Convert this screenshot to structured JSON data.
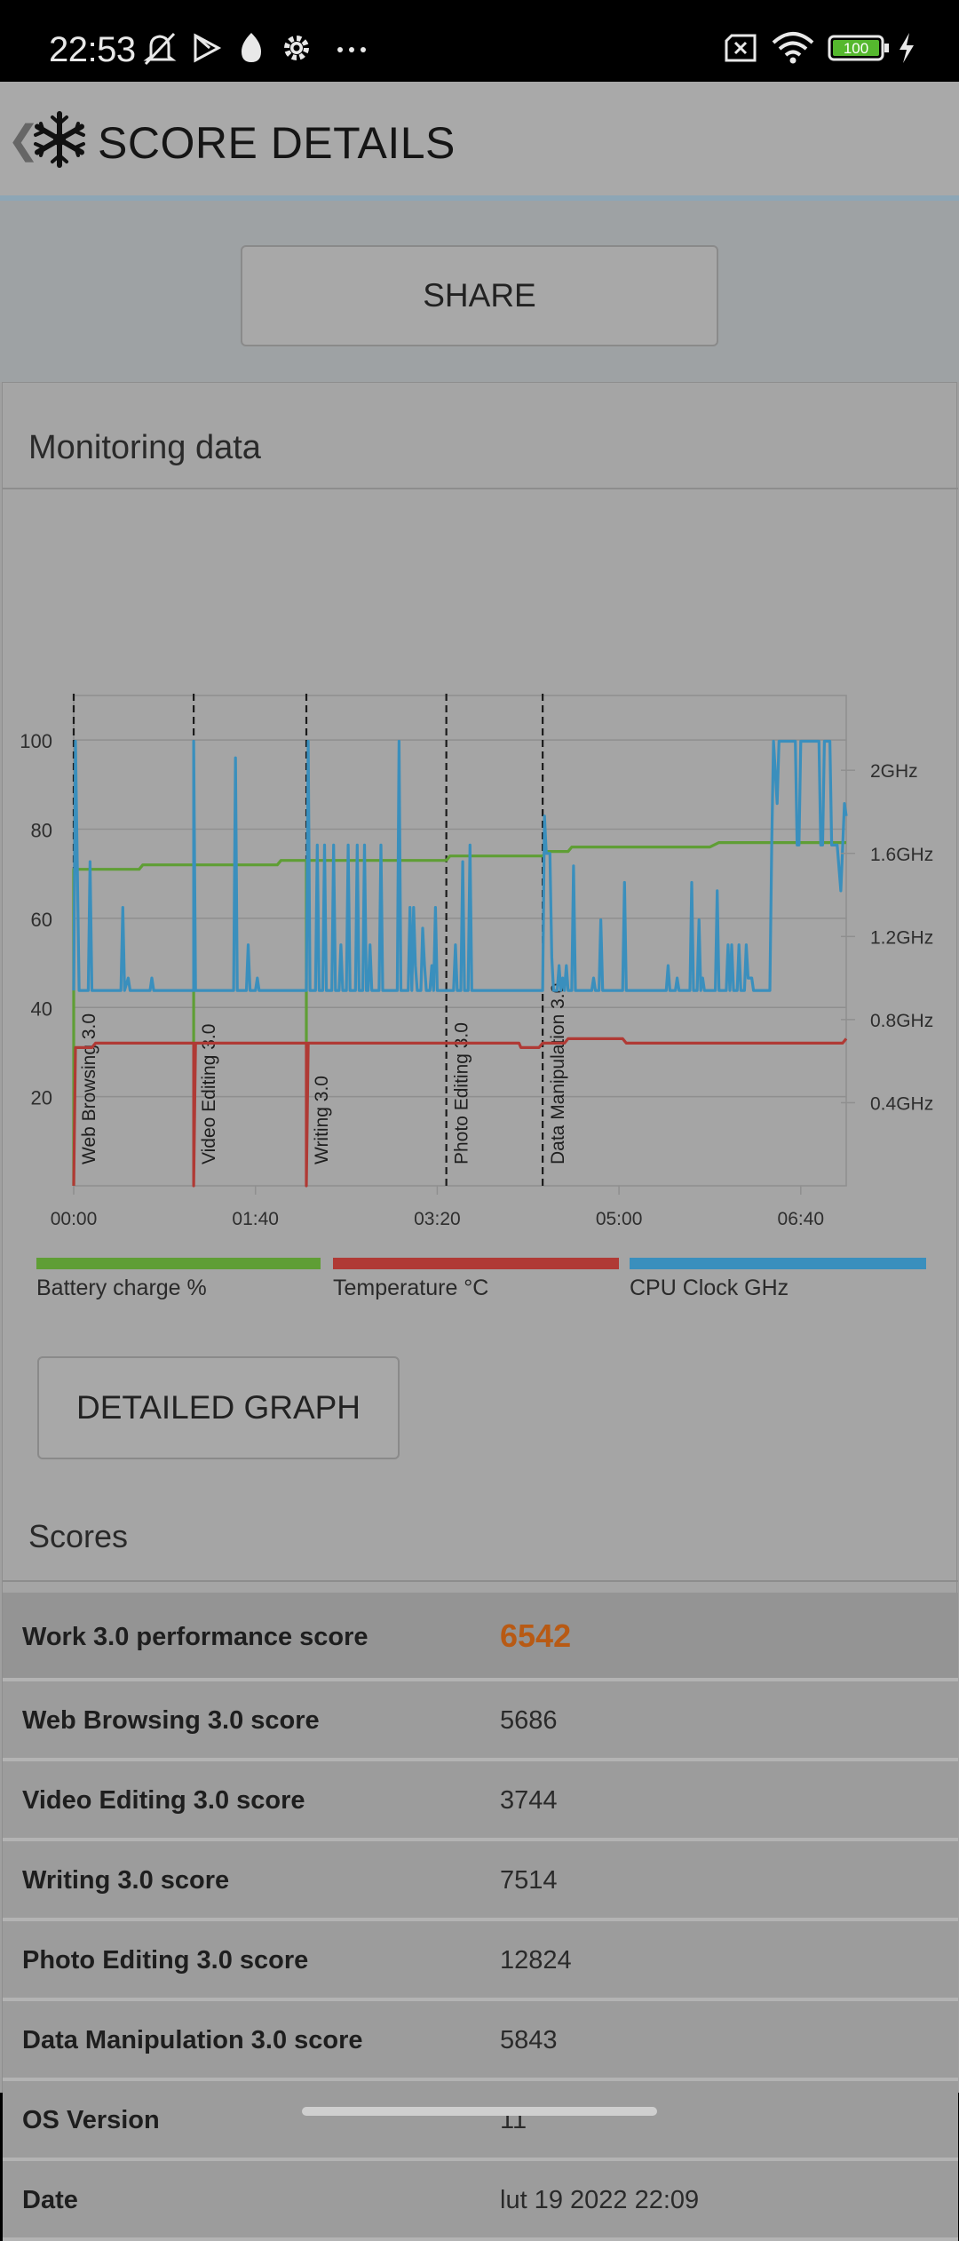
{
  "status_bar": {
    "time": "22:53",
    "battery_level": "100",
    "icons": [
      "mute-bell-icon",
      "play-store-icon",
      "flame-app-icon",
      "settings-icon",
      "more-icon",
      "no-sim-icon",
      "wifi-icon",
      "battery-icon",
      "charging-icon"
    ]
  },
  "app_bar": {
    "title": "SCORE DETAILS",
    "back_glyph": "❮"
  },
  "share_button": "SHARE",
  "monitoring": {
    "title": "Monitoring data"
  },
  "chart_data": {
    "type": "line",
    "title": "",
    "x_ticks": [
      "00:00",
      "01:40",
      "03:20",
      "05:00",
      "06:40"
    ],
    "x_range_seconds": [
      0,
      425
    ],
    "y_left_ticks": [
      "20",
      "40",
      "60",
      "80",
      "100"
    ],
    "y_left_range": [
      0,
      110
    ],
    "y_right_ticks": [
      "0.4GHz",
      "0.8GHz",
      "1.2GHz",
      "1.6GHz",
      "2GHz"
    ],
    "y_right_range_ghz": [
      0,
      2.36
    ],
    "grid": true,
    "test_markers": [
      {
        "label": "Web Browsing 3.0",
        "time_seconds": 0
      },
      {
        "label": "Video Editing 3.0",
        "time_seconds": 66
      },
      {
        "label": "Writing 3.0",
        "time_seconds": 128
      },
      {
        "label": "Photo Editing 3.0",
        "time_seconds": 205
      },
      {
        "label": "Data Manipulation 3.0",
        "time_seconds": 258
      }
    ],
    "series": [
      {
        "name": "Battery charge %",
        "color": "#5f9e35",
        "axis": "left",
        "points": [
          [
            0,
            0
          ],
          [
            0,
            71
          ],
          [
            36,
            71
          ],
          [
            38,
            72
          ],
          [
            66,
            72
          ],
          [
            66,
            31
          ],
          [
            66,
            72
          ],
          [
            112,
            72
          ],
          [
            114,
            73
          ],
          [
            128,
            73
          ],
          [
            128,
            31
          ],
          [
            128,
            73
          ],
          [
            205,
            73
          ],
          [
            207,
            74
          ],
          [
            258,
            74
          ],
          [
            260,
            75
          ],
          [
            272,
            75
          ],
          [
            274,
            76
          ],
          [
            350,
            76
          ],
          [
            355,
            77
          ],
          [
            425,
            77
          ]
        ]
      },
      {
        "name": "Temperature °C",
        "color": "#b03a35",
        "axis": "left",
        "points": [
          [
            0,
            0
          ],
          [
            1,
            31
          ],
          [
            10,
            31
          ],
          [
            12,
            32
          ],
          [
            66,
            32
          ],
          [
            66,
            0
          ],
          [
            67,
            32
          ],
          [
            128,
            32
          ],
          [
            128,
            0
          ],
          [
            129,
            32
          ],
          [
            245,
            32
          ],
          [
            246,
            31
          ],
          [
            256,
            31
          ],
          [
            258,
            32
          ],
          [
            270,
            32
          ],
          [
            272,
            33
          ],
          [
            302,
            33
          ],
          [
            304,
            32
          ],
          [
            423,
            32
          ],
          [
            425,
            33
          ]
        ]
      },
      {
        "name": "CPU Clock GHz",
        "color": "#3a8fbd",
        "axis": "right",
        "points": [
          [
            0,
            0.94
          ],
          [
            1,
            2.14
          ],
          [
            3,
            0.94
          ],
          [
            8,
            0.94
          ],
          [
            9,
            1.56
          ],
          [
            10,
            0.94
          ],
          [
            26,
            0.94
          ],
          [
            27,
            1.34
          ],
          [
            28,
            0.94
          ],
          [
            30,
            1.0
          ],
          [
            31,
            0.94
          ],
          [
            42,
            0.94
          ],
          [
            43,
            1.0
          ],
          [
            44,
            0.94
          ],
          [
            66,
            0.94
          ],
          [
            66,
            2.14
          ],
          [
            67,
            0.94
          ],
          [
            88,
            0.94
          ],
          [
            89,
            2.06
          ],
          [
            90,
            0.94
          ],
          [
            95,
            0.94
          ],
          [
            96,
            1.16
          ],
          [
            97,
            0.94
          ],
          [
            100,
            0.94
          ],
          [
            101,
            1.0
          ],
          [
            102,
            0.94
          ],
          [
            128,
            0.94
          ],
          [
            129,
            2.14
          ],
          [
            130,
            0.94
          ],
          [
            133,
            0.94
          ],
          [
            134,
            1.64
          ],
          [
            135,
            0.94
          ],
          [
            137,
            0.94
          ],
          [
            138,
            1.64
          ],
          [
            139,
            0.94
          ],
          [
            142,
            0.94
          ],
          [
            143,
            1.64
          ],
          [
            144,
            0.94
          ],
          [
            146,
            0.94
          ],
          [
            147,
            1.16
          ],
          [
            148,
            0.94
          ],
          [
            150,
            0.94
          ],
          [
            151,
            1.64
          ],
          [
            152,
            0.94
          ],
          [
            155,
            0.94
          ],
          [
            156,
            1.64
          ],
          [
            157,
            0.94
          ],
          [
            159,
            0.94
          ],
          [
            160,
            1.64
          ],
          [
            161,
            0.94
          ],
          [
            162,
            0.94
          ],
          [
            163,
            1.16
          ],
          [
            164,
            0.94
          ],
          [
            168,
            0.94
          ],
          [
            169,
            1.64
          ],
          [
            170,
            0.94
          ],
          [
            178,
            0.94
          ],
          [
            179,
            2.14
          ],
          [
            180,
            0.94
          ],
          [
            184,
            0.94
          ],
          [
            185,
            1.34
          ],
          [
            186,
            0.94
          ],
          [
            187,
            1.34
          ],
          [
            188,
            1.06
          ],
          [
            189,
            0.94
          ],
          [
            191,
            0.94
          ],
          [
            192,
            1.24
          ],
          [
            193,
            1.06
          ],
          [
            194,
            0.94
          ],
          [
            196,
            0.94
          ],
          [
            197,
            1.06
          ],
          [
            198,
            0.94
          ],
          [
            199,
            1.34
          ],
          [
            200,
            0.94
          ],
          [
            205,
            0.94
          ],
          [
            206,
            0.94
          ],
          [
            209,
            0.94
          ],
          [
            210,
            1.16
          ],
          [
            211,
            0.94
          ],
          [
            213,
            0.94
          ],
          [
            214,
            1.56
          ],
          [
            215,
            0.94
          ],
          [
            217,
            0.94
          ],
          [
            218,
            1.64
          ],
          [
            219,
            0.94
          ],
          [
            258,
            0.94
          ],
          [
            259,
            1.78
          ],
          [
            260,
            1.6
          ],
          [
            262,
            1.6
          ],
          [
            263,
            1.1
          ],
          [
            264,
            0.94
          ],
          [
            266,
            0.94
          ],
          [
            267,
            1.06
          ],
          [
            268,
            0.94
          ],
          [
            269,
            1.0
          ],
          [
            270,
            0.94
          ],
          [
            271,
            1.06
          ],
          [
            272,
            0.94
          ],
          [
            274,
            0.94
          ],
          [
            275,
            1.54
          ],
          [
            276,
            0.94
          ],
          [
            285,
            0.94
          ],
          [
            286,
            1.0
          ],
          [
            287,
            0.94
          ],
          [
            289,
            0.94
          ],
          [
            290,
            1.28
          ],
          [
            291,
            0.94
          ],
          [
            302,
            0.94
          ],
          [
            303,
            1.46
          ],
          [
            304,
            0.94
          ],
          [
            326,
            0.94
          ],
          [
            327,
            1.06
          ],
          [
            328,
            0.94
          ],
          [
            331,
            0.94
          ],
          [
            332,
            1.0
          ],
          [
            333,
            0.94
          ],
          [
            339,
            0.94
          ],
          [
            340,
            1.46
          ],
          [
            341,
            0.94
          ],
          [
            343,
            0.94
          ],
          [
            344,
            1.28
          ],
          [
            345,
            0.94
          ],
          [
            346,
            1.0
          ],
          [
            347,
            0.94
          ],
          [
            353,
            0.94
          ],
          [
            354,
            1.42
          ],
          [
            355,
            0.94
          ],
          [
            359,
            0.94
          ],
          [
            360,
            1.16
          ],
          [
            361,
            0.94
          ],
          [
            362,
            1.16
          ],
          [
            363,
            0.94
          ],
          [
            365,
            0.94
          ],
          [
            366,
            1.16
          ],
          [
            367,
            0.94
          ],
          [
            369,
            0.94
          ],
          [
            370,
            1.16
          ],
          [
            371,
            1.0
          ],
          [
            373,
            1.0
          ],
          [
            374,
            0.94
          ],
          [
            383,
            0.94
          ],
          [
            384,
            1.64
          ],
          [
            385,
            2.14
          ],
          [
            387,
            1.84
          ],
          [
            388,
            2.14
          ],
          [
            397,
            2.14
          ],
          [
            398,
            1.64
          ],
          [
            399,
            1.64
          ],
          [
            400,
            2.14
          ],
          [
            410,
            2.14
          ],
          [
            411,
            1.64
          ],
          [
            412,
            1.64
          ],
          [
            413,
            2.14
          ],
          [
            416,
            2.14
          ],
          [
            417,
            1.64
          ],
          [
            420,
            1.64
          ],
          [
            422,
            1.42
          ],
          [
            424,
            1.84
          ],
          [
            425,
            1.78
          ]
        ]
      }
    ]
  },
  "legend": {
    "battery": {
      "label": "Battery charge %",
      "color": "#5f9e35"
    },
    "temperature": {
      "label": "Temperature °C",
      "color": "#b03a35"
    },
    "cpu": {
      "label": "CPU Clock GHz",
      "color": "#3a8fbd"
    }
  },
  "detailed_graph_button": "DETAILED GRAPH",
  "scores": {
    "title": "Scores",
    "rows": [
      {
        "label": "Work 3.0 performance score",
        "value": "6542"
      },
      {
        "label": "Web Browsing 3.0 score",
        "value": "5686"
      },
      {
        "label": "Video Editing 3.0 score",
        "value": "3744"
      },
      {
        "label": "Writing 3.0 score",
        "value": "7514"
      },
      {
        "label": "Photo Editing 3.0 score",
        "value": "12824"
      },
      {
        "label": "Data Manipulation 3.0 score",
        "value": "5843"
      },
      {
        "label": "OS Version",
        "value": "11"
      },
      {
        "label": "Date",
        "value": "lut 19 2022 22:09"
      }
    ]
  }
}
